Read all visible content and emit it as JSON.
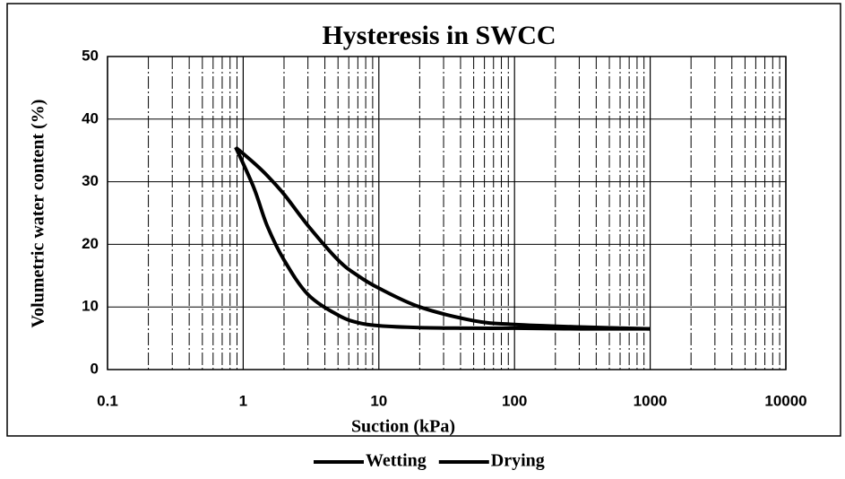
{
  "chart_data": {
    "type": "line",
    "title": "Hysteresis in SWCC",
    "x_label": "Suction (kPa)",
    "y_label": "Volumetric water content (%)",
    "log_x": true,
    "grid": true,
    "legend": "bottom",
    "xlim": [
      0.1,
      10000
    ],
    "xticks": [
      0.1,
      1,
      10,
      100,
      1000,
      10000
    ],
    "ylim": [
      0,
      50
    ],
    "yticks": [
      0,
      10,
      20,
      30,
      40,
      50
    ],
    "series": [
      {
        "name": "Wetting",
        "color": "#000000",
        "x": [
          0.88,
          1.2,
          1.5,
          2,
          3,
          5,
          7,
          10,
          20,
          50,
          100,
          300,
          1000
        ],
        "values": [
          35.5,
          29,
          23,
          17.5,
          12,
          8.7,
          7.5,
          7,
          6.7,
          6.6,
          6.6,
          6.5,
          6.5
        ]
      },
      {
        "name": "Drying",
        "color": "#000000",
        "x": [
          0.88,
          1.2,
          1.5,
          2,
          3,
          5,
          7,
          10,
          20,
          50,
          100,
          300,
          1000
        ],
        "values": [
          35.5,
          33,
          31,
          28,
          23,
          17.5,
          15,
          13,
          10,
          7.8,
          7.2,
          6.8,
          6.5
        ]
      }
    ]
  }
}
